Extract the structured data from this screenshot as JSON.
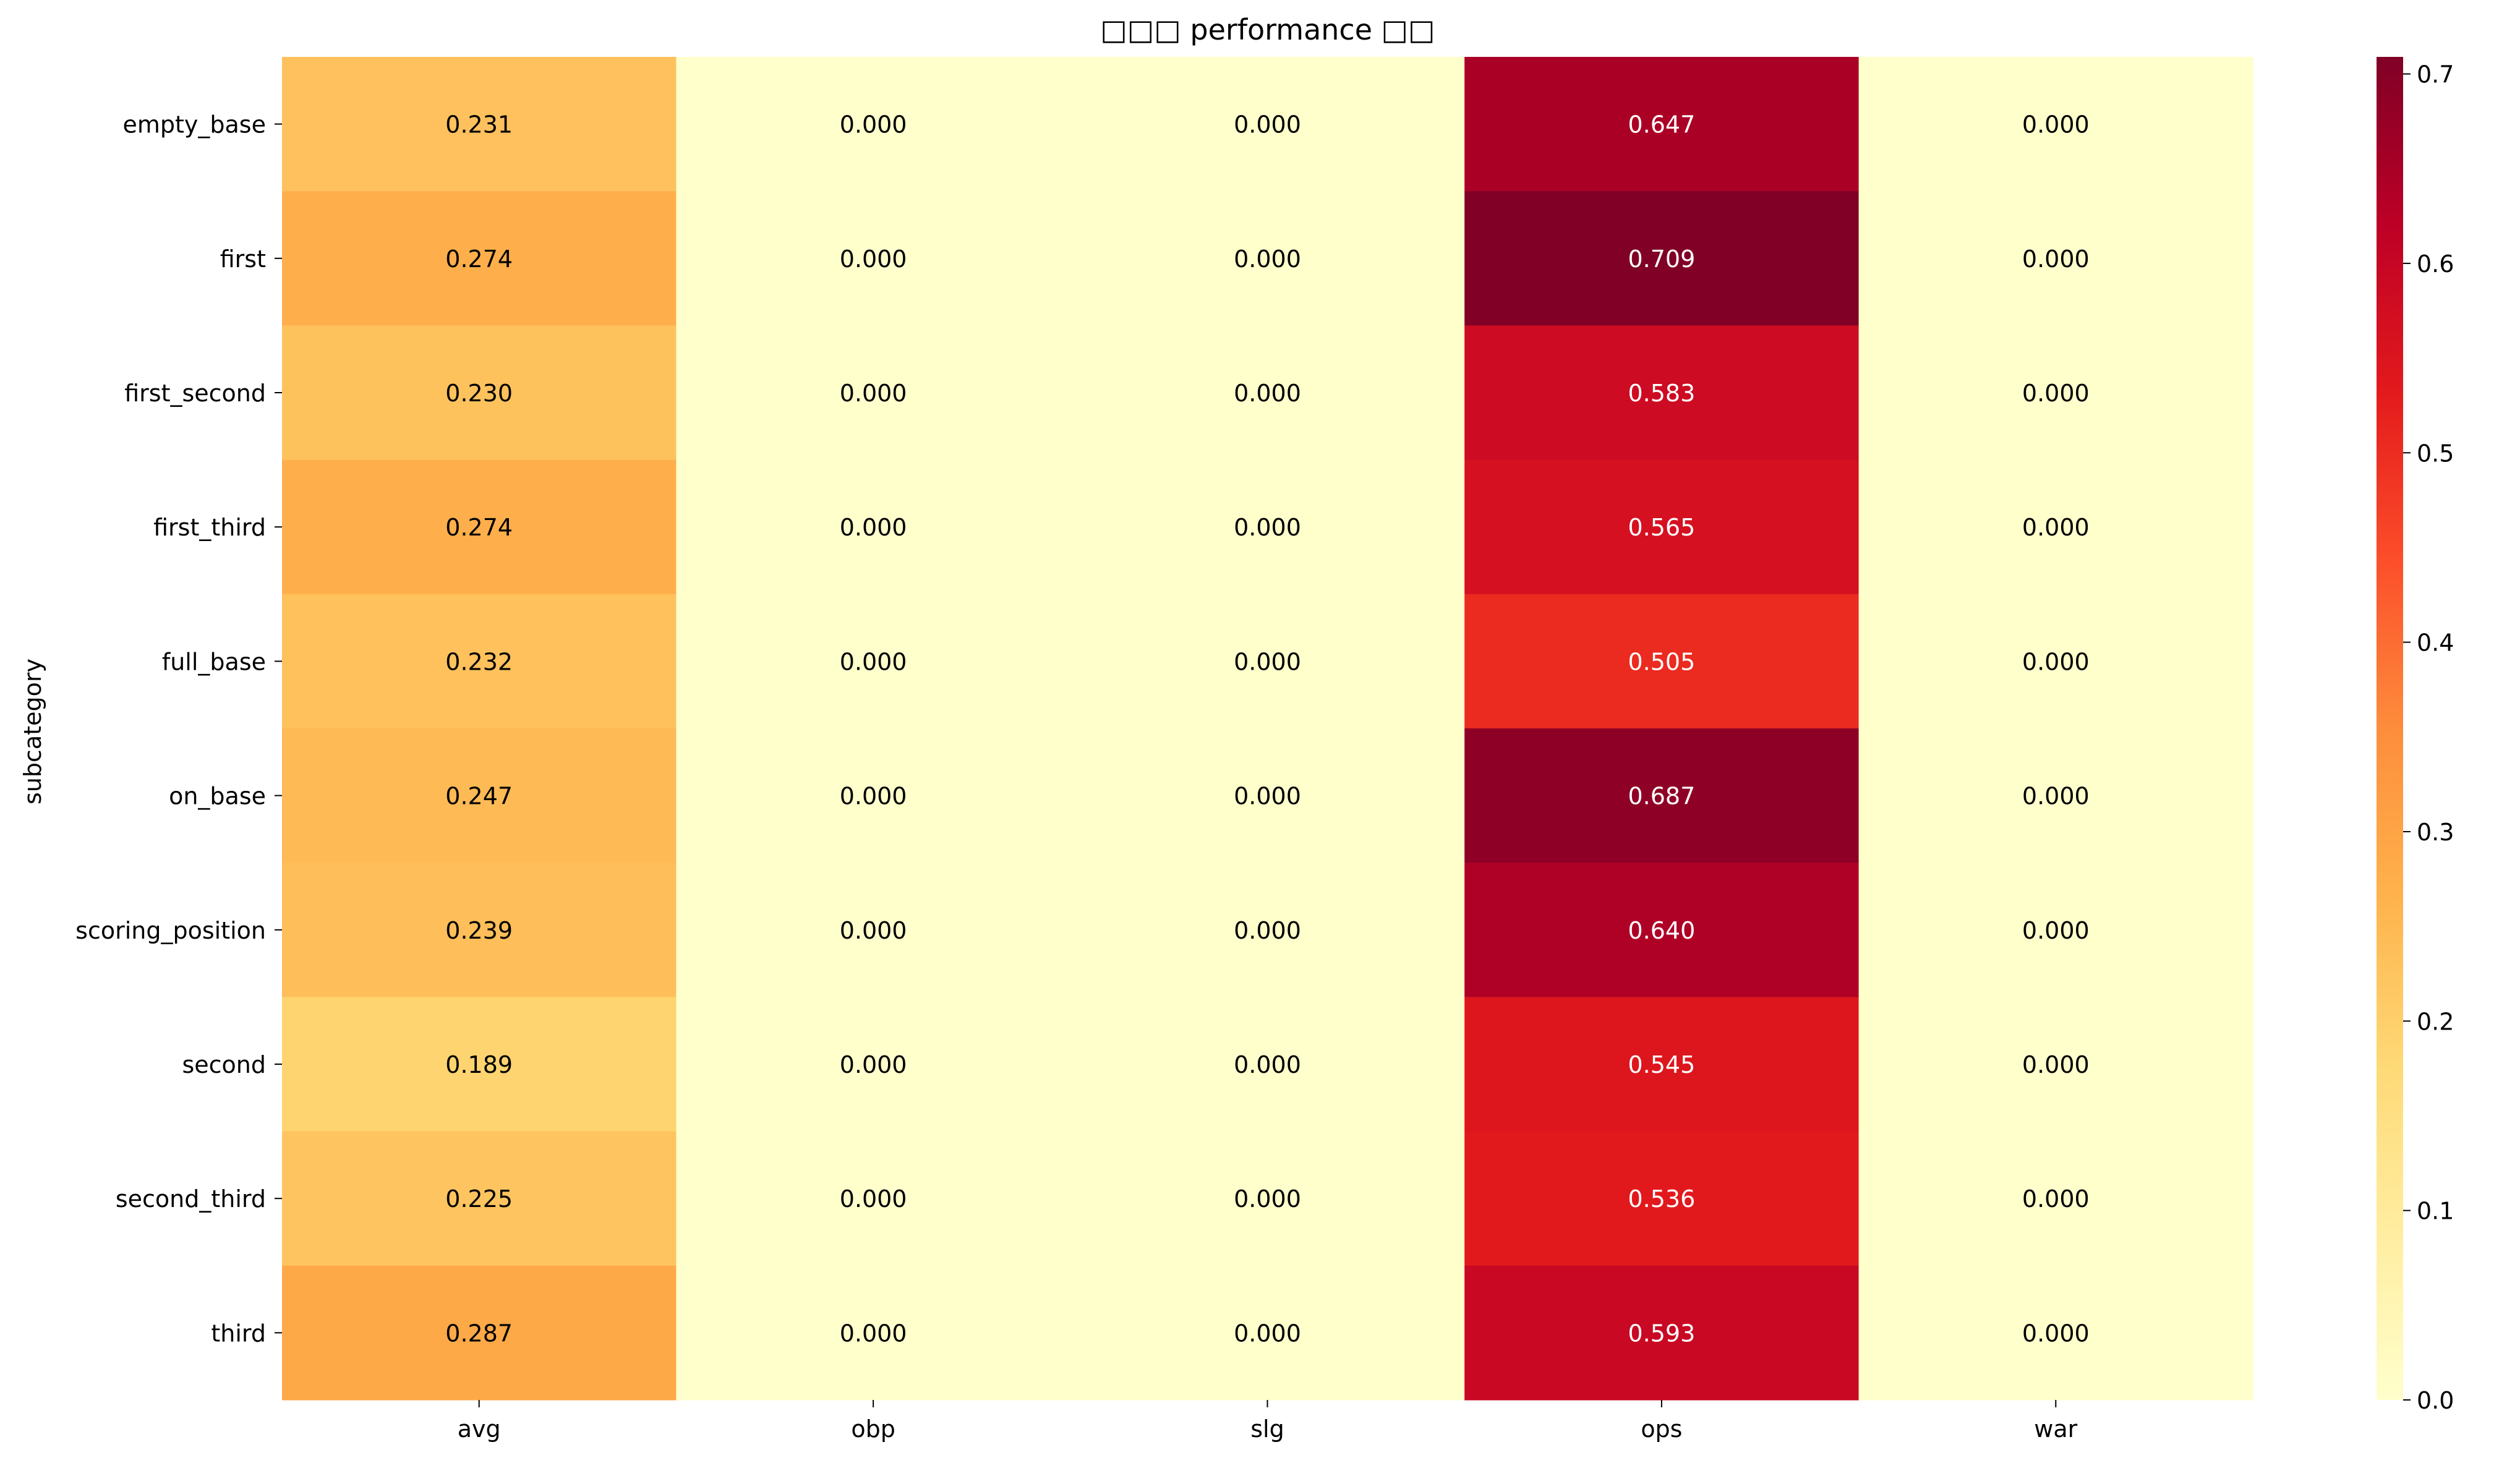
{
  "chart_data": {
    "type": "heatmap",
    "title": "□□□ performance □□",
    "xlabel": "",
    "ylabel": "subcategory",
    "x_categories": [
      "avg",
      "obp",
      "slg",
      "ops",
      "war"
    ],
    "y_categories": [
      "empty_base",
      "first",
      "first_second",
      "first_third",
      "full_base",
      "on_base",
      "scoring_position",
      "second",
      "second_third",
      "third"
    ],
    "values": [
      [
        0.231,
        0.0,
        0.0,
        0.647,
        0.0
      ],
      [
        0.274,
        0.0,
        0.0,
        0.709,
        0.0
      ],
      [
        0.23,
        0.0,
        0.0,
        0.583,
        0.0
      ],
      [
        0.274,
        0.0,
        0.0,
        0.565,
        0.0
      ],
      [
        0.232,
        0.0,
        0.0,
        0.505,
        0.0
      ],
      [
        0.247,
        0.0,
        0.0,
        0.687,
        0.0
      ],
      [
        0.239,
        0.0,
        0.0,
        0.64,
        0.0
      ],
      [
        0.189,
        0.0,
        0.0,
        0.545,
        0.0
      ],
      [
        0.225,
        0.0,
        0.0,
        0.536,
        0.0
      ],
      [
        0.287,
        0.0,
        0.0,
        0.593,
        0.0
      ]
    ],
    "value_format": "0.000",
    "colormap": "YlOrRd",
    "colorbar": {
      "range": [
        0.0,
        0.709
      ],
      "ticks": [
        "0.0",
        "0.1",
        "0.2",
        "0.3",
        "0.4",
        "0.5",
        "0.6",
        "0.7"
      ]
    },
    "grid": false,
    "legend": "colorbar-right"
  }
}
